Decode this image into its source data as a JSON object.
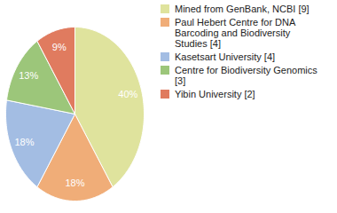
{
  "chart_data": {
    "type": "pie",
    "categories": [
      "Mined from GenBank, NCBI [9]",
      "Paul Hebert Centre for DNA Barcoding and Biodiversity Studies [4]",
      "Kasetsart University [4]",
      "Centre for Biodiversity Genomics [3]",
      "Yibin University [2]"
    ],
    "values": [
      40,
      18,
      18,
      13,
      9
    ],
    "colors": [
      "#dfe39d",
      "#f0ad78",
      "#a3bde3",
      "#9cc67a",
      "#e07b5f"
    ],
    "data_labels": true,
    "value_labels": [
      "40%",
      "18%",
      "18%",
      "13%",
      "9%"
    ],
    "legend": "top-right"
  }
}
